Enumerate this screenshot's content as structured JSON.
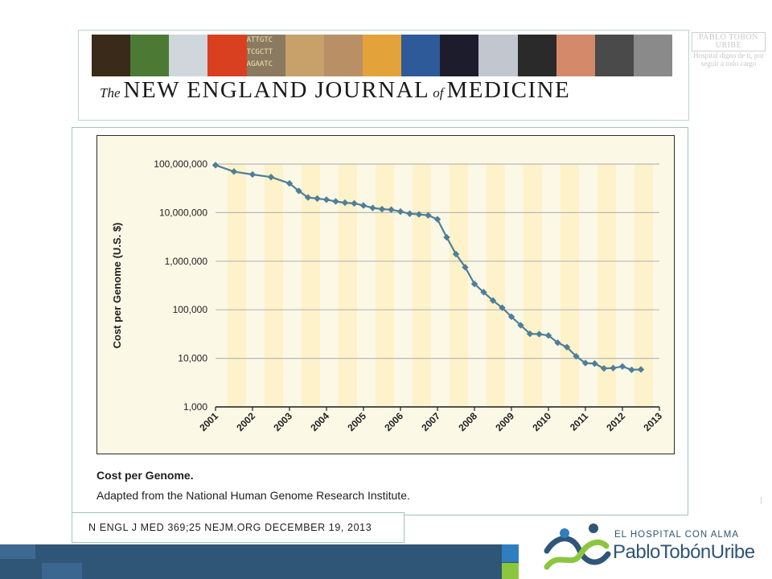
{
  "header": {
    "title_the": "The",
    "title_main1": "NEW ENGLAND JOURNAL",
    "title_of": "of",
    "title_main2": "MEDICINE",
    "strip_colors": [
      "#3a2a1a",
      "#4c7a35",
      "#cfd7dc",
      "#d8401f",
      "#8a7a60",
      "#c8a06a",
      "#b98f66",
      "#e3a23a",
      "#2f5a9a",
      "#1c1c2c",
      "#c2c7cf",
      "#2a2a2a",
      "#d48a6a",
      "#4a4a4a",
      "#8a8a8a"
    ],
    "strip_text": "ATTGTC TCGCTT AGAATC"
  },
  "watermark": {
    "name": "PABLO TOBÓN URIBE",
    "tagline": "Hospital digno de ti, por seguir a todo cargo"
  },
  "chart_data": {
    "type": "line",
    "ylabel": "Cost per Genome (U.S. $)",
    "xlabel": "",
    "yscale": "log",
    "ylim": [
      1000,
      100000000
    ],
    "y_ticks": [
      {
        "value": 100000000,
        "label": "100,000,000"
      },
      {
        "value": 10000000,
        "label": "10,000,000"
      },
      {
        "value": 1000000,
        "label": "1,000,000"
      },
      {
        "value": 100000,
        "label": "100,000"
      },
      {
        "value": 10000,
        "label": "10,000"
      },
      {
        "value": 1000,
        "label": "1,000"
      }
    ],
    "xlim": [
      2001,
      2013
    ],
    "x_ticks": [
      "2001",
      "2002",
      "2003",
      "2004",
      "2005",
      "2006",
      "2007",
      "2008",
      "2009",
      "2010",
      "2011",
      "2012",
      "2013"
    ],
    "grid": true,
    "line_color": "#4e7f98",
    "background": "#fbf8e6",
    "band_color": "#fdf2c9",
    "series": [
      {
        "points": [
          {
            "x": 2001.0,
            "y": 95000000
          },
          {
            "x": 2001.5,
            "y": 70000000
          },
          {
            "x": 2002.0,
            "y": 61000000
          },
          {
            "x": 2002.5,
            "y": 54000000
          },
          {
            "x": 2003.0,
            "y": 40000000
          },
          {
            "x": 2003.25,
            "y": 28000000
          },
          {
            "x": 2003.5,
            "y": 20500000
          },
          {
            "x": 2003.75,
            "y": 19500000
          },
          {
            "x": 2004.0,
            "y": 18500000
          },
          {
            "x": 2004.25,
            "y": 17000000
          },
          {
            "x": 2004.5,
            "y": 16000000
          },
          {
            "x": 2004.75,
            "y": 15500000
          },
          {
            "x": 2005.0,
            "y": 14000000
          },
          {
            "x": 2005.25,
            "y": 12500000
          },
          {
            "x": 2005.5,
            "y": 11800000
          },
          {
            "x": 2005.75,
            "y": 11500000
          },
          {
            "x": 2006.0,
            "y": 10500000
          },
          {
            "x": 2006.25,
            "y": 9500000
          },
          {
            "x": 2006.5,
            "y": 9200000
          },
          {
            "x": 2006.75,
            "y": 8800000
          },
          {
            "x": 2007.0,
            "y": 7300000
          },
          {
            "x": 2007.25,
            "y": 3100000
          },
          {
            "x": 2007.5,
            "y": 1400000
          },
          {
            "x": 2007.75,
            "y": 750000
          },
          {
            "x": 2008.0,
            "y": 340000
          },
          {
            "x": 2008.25,
            "y": 230000
          },
          {
            "x": 2008.5,
            "y": 155000
          },
          {
            "x": 2008.75,
            "y": 110000
          },
          {
            "x": 2009.0,
            "y": 72000
          },
          {
            "x": 2009.25,
            "y": 48000
          },
          {
            "x": 2009.5,
            "y": 32000
          },
          {
            "x": 2009.75,
            "y": 31500
          },
          {
            "x": 2010.0,
            "y": 29500
          },
          {
            "x": 2010.25,
            "y": 21000
          },
          {
            "x": 2010.5,
            "y": 17000
          },
          {
            "x": 2010.75,
            "y": 11000
          },
          {
            "x": 2011.0,
            "y": 8000
          },
          {
            "x": 2011.25,
            "y": 7800
          },
          {
            "x": 2011.5,
            "y": 6200
          },
          {
            "x": 2011.75,
            "y": 6300
          },
          {
            "x": 2012.0,
            "y": 6800
          },
          {
            "x": 2012.25,
            "y": 5800
          },
          {
            "x": 2012.5,
            "y": 5900
          }
        ]
      }
    ]
  },
  "caption": {
    "title": "Cost per Genome.",
    "subtitle": "Adapted from the National Human Genome Research Institute."
  },
  "citation": "N ENGL J MED 369;25    NEJM.ORG    DECEMBER 19, 2013",
  "logo": {
    "line1": "EL HOSPITAL CON ALMA",
    "line2": "PabloTobónUribe",
    "colors": [
      "#2f5577",
      "#8cc63f",
      "#2f7fc0"
    ]
  }
}
